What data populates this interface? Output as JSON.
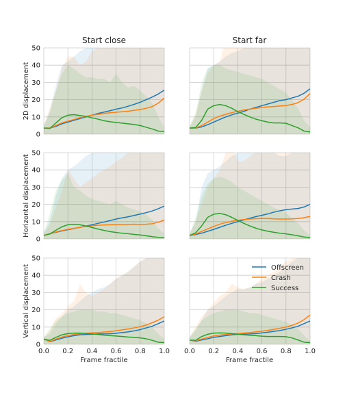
{
  "chart_data": {
    "type": "line",
    "column_titles": [
      "Start close",
      "Start far"
    ],
    "row_labels": [
      "2D displacement",
      "Horizontal displacement",
      "Vertical displacement"
    ],
    "xlabel": "Frame fractile",
    "xlim": [
      0.0,
      1.0
    ],
    "ylim": [
      0,
      50
    ],
    "xticks": [
      "0.0",
      "0.2",
      "0.4",
      "0.6",
      "0.8",
      "1.0"
    ],
    "yticks": [
      "0",
      "10",
      "20",
      "30",
      "40",
      "50"
    ],
    "grid": true,
    "legend": {
      "placement": "upper-right of bottom-right panel",
      "entries": [
        "Offscreen",
        "Crash",
        "Success"
      ]
    },
    "colors": {
      "Offscreen": "#1f77b4",
      "Crash": "#ff7f0e",
      "Success": "#2ca02c"
    },
    "x": [
      0.0,
      0.05,
      0.1,
      0.15,
      0.2,
      0.25,
      0.3,
      0.35,
      0.4,
      0.45,
      0.5,
      0.55,
      0.6,
      0.65,
      0.7,
      0.75,
      0.8,
      0.85,
      0.9,
      0.95,
      1.0
    ],
    "panels": [
      {
        "row": 0,
        "col": 0,
        "series": [
          {
            "name": "Offscreen",
            "values": [
              3.5,
              3.5,
              4.5,
              6,
              7,
              8,
              9,
              10,
              11,
              12,
              12.8,
              13.6,
              14.5,
              15.2,
              16.2,
              17.3,
              18.5,
              20,
              21.5,
              23.3,
              25.5
            ],
            "band_upper": [
              5,
              14,
              28,
              40,
              42,
              45,
              48,
              50,
              55,
              58,
              55,
              58,
              60,
              52,
              55,
              52,
              52,
              50,
              52,
              55,
              50
            ]
          },
          {
            "name": "Crash",
            "values": [
              3.5,
              3.5,
              5,
              6.5,
              7.5,
              8.5,
              9.5,
              10.3,
              11,
              11.5,
              12,
              12.4,
              12.7,
              13,
              13.3,
              13.8,
              14.3,
              15,
              16,
              18,
              21
            ],
            "band_upper": [
              5,
              15,
              25,
              38,
              45,
              45,
              40,
              42,
              48,
              50,
              50,
              52,
              55,
              55,
              55,
              55,
              55,
              55,
              55,
              55,
              55
            ]
          },
          {
            "name": "Success",
            "values": [
              3.5,
              3.3,
              6.5,
              9.5,
              11,
              11.3,
              10.8,
              10.3,
              9.5,
              8.7,
              7.8,
              7.2,
              6.8,
              6.4,
              6,
              5.6,
              5,
              4,
              3,
              1.8,
              1.5
            ],
            "band_upper": [
              5,
              12,
              25,
              35,
              40,
              38,
              35,
              33,
              33,
              32,
              32,
              30,
              35,
              30,
              27,
              28,
              25,
              22,
              18,
              10,
              4
            ]
          }
        ]
      },
      {
        "row": 0,
        "col": 1,
        "series": [
          {
            "name": "Offscreen",
            "values": [
              3.5,
              3.5,
              4.2,
              5.5,
              7,
              8.5,
              10,
              11.2,
              12.2,
              13.2,
              14.5,
              15.5,
              16.5,
              17.5,
              18.5,
              19.5,
              20,
              21,
              22,
              23.7,
              26.3
            ],
            "band_upper": [
              4,
              10,
              25,
              38,
              40,
              42,
              45,
              47,
              48,
              50,
              50,
              50,
              52,
              52,
              52,
              50,
              50,
              50,
              50,
              50,
              50
            ]
          },
          {
            "name": "Crash",
            "values": [
              3.5,
              3.5,
              5,
              7,
              9,
              10.5,
              11.5,
              12.5,
              13.3,
              14,
              14.5,
              15,
              15.5,
              15.8,
              16,
              16.3,
              16.6,
              17.2,
              18.3,
              20.3,
              23.5
            ],
            "band_upper": [
              4,
              12,
              25,
              35,
              40,
              42,
              55,
              55,
              50,
              52,
              55,
              55,
              55,
              55,
              55,
              55,
              55,
              55,
              55,
              55,
              55
            ]
          },
          {
            "name": "Success",
            "values": [
              3.5,
              3.8,
              8,
              14.5,
              16.5,
              17.2,
              16.5,
              15,
              13,
              11.5,
              10,
              8.7,
              7.8,
              7,
              6.5,
              6.5,
              6.3,
              5,
              3.7,
              1.8,
              1.3
            ],
            "band_upper": [
              5,
              12,
              30,
              38,
              40,
              40,
              38,
              37,
              36,
              35,
              34,
              33,
              32,
              30,
              28,
              26,
              24,
              20,
              15,
              8,
              4
            ]
          }
        ]
      },
      {
        "row": 1,
        "col": 0,
        "series": [
          {
            "name": "Offscreen",
            "values": [
              2,
              3,
              3.8,
              4.6,
              5.3,
              6,
              6.7,
              7.4,
              8.2,
              9,
              9.8,
              10.6,
              11.5,
              12.2,
              12.8,
              13.6,
              14.4,
              15.2,
              16.2,
              17.5,
              19
            ],
            "band_upper": [
              4,
              10,
              25,
              35,
              40,
              42,
              45,
              48,
              50,
              50,
              50,
              50,
              52,
              52,
              52,
              50,
              50,
              50,
              50,
              50,
              50
            ]
          },
          {
            "name": "Crash",
            "values": [
              2,
              3,
              4,
              4.8,
              5.5,
              6.1,
              6.7,
              7.2,
              7.6,
              7.9,
              8.1,
              8.2,
              8.3,
              8.3,
              8.4,
              8.5,
              8.4,
              8.5,
              8.8,
              9.6,
              11
            ],
            "band_upper": [
              3,
              8,
              18,
              28,
              40,
              35,
              30,
              33,
              35,
              38,
              40,
              42,
              45,
              47,
              50,
              52,
              55,
              55,
              55,
              55,
              55
            ]
          },
          {
            "name": "Success",
            "values": [
              2,
              2.8,
              5,
              7,
              8.2,
              8.5,
              8.2,
              7.5,
              6.6,
              5.7,
              4.9,
              4.2,
              3.7,
              3.3,
              3,
              2.6,
              2.3,
              1.8,
              1.3,
              0.9,
              0.7
            ],
            "band_upper": [
              3,
              15,
              28,
              34,
              38,
              30,
              28,
              25,
              23,
              22,
              21,
              20,
              22,
              20,
              18,
              17,
              16,
              14,
              11,
              6,
              3
            ]
          }
        ]
      },
      {
        "row": 1,
        "col": 1,
        "series": [
          {
            "name": "Offscreen",
            "values": [
              2,
              2.5,
              3.3,
              4.4,
              5.5,
              6.7,
              7.9,
              9,
              10,
              11,
              12,
              12.9,
              13.7,
              14.5,
              15.5,
              16.3,
              16.9,
              17.3,
              17.6,
              18.5,
              20
            ],
            "band_upper": [
              3,
              10,
              30,
              38,
              40,
              42,
              45,
              48,
              50,
              50,
              50,
              50,
              50,
              50,
              50,
              48,
              48,
              50,
              50,
              50,
              50
            ]
          },
          {
            "name": "Crash",
            "values": [
              2,
              2.8,
              4.3,
              5.8,
              7.2,
              8.5,
              9.5,
              10.2,
              10.8,
              11.2,
              11.5,
              11.7,
              11.8,
              11.8,
              11.6,
              11.5,
              11.5,
              11.6,
              11.8,
              12.3,
              13
            ],
            "band_upper": [
              3,
              10,
              20,
              30,
              35,
              40,
              50,
              55,
              45,
              45,
              48,
              50,
              50,
              52,
              55,
              55,
              55,
              55,
              55,
              55,
              55
            ]
          },
          {
            "name": "Success",
            "values": [
              2,
              3.5,
              7.5,
              12.5,
              14.3,
              14.8,
              14,
              12.5,
              10.7,
              9,
              7.5,
              6.2,
              5.2,
              4.4,
              3.8,
              3.3,
              2.9,
              2.4,
              1.8,
              1.1,
              0.8
            ],
            "band_upper": [
              3,
              12,
              25,
              32,
              35,
              36,
              35,
              33,
              30,
              28,
              26,
              24,
              22,
              20,
              18,
              17,
              15,
              12,
              9,
              5,
              2
            ]
          }
        ]
      },
      {
        "row": 2,
        "col": 0,
        "series": [
          {
            "name": "Offscreen",
            "values": [
              3,
              1.5,
              2.5,
              3.5,
              4.3,
              5,
              5.5,
              5.7,
              5.8,
              6,
              6,
              6.1,
              6.4,
              6.8,
              7.2,
              7.8,
              8.5,
              9.5,
              10.5,
              12,
              13.5
            ],
            "band_upper": [
              4,
              6,
              12,
              16,
              20,
              22,
              25,
              28,
              30,
              32,
              33,
              35,
              38,
              40,
              42,
              45,
              48,
              50,
              50,
              50,
              50
            ]
          },
          {
            "name": "Crash",
            "values": [
              3,
              1.5,
              3,
              4.2,
              5,
              5.7,
              6.1,
              6.4,
              6.6,
              6.8,
              7.1,
              7.4,
              7.9,
              8.4,
              8.9,
              9.5,
              10.2,
              11.2,
              12.5,
              14,
              16
            ],
            "band_upper": [
              4,
              8,
              15,
              18,
              22,
              25,
              35,
              30,
              28,
              30,
              32,
              35,
              38,
              40,
              42,
              45,
              48,
              50,
              52,
              55,
              55
            ]
          },
          {
            "name": "Success",
            "values": [
              3,
              2.3,
              4,
              5.5,
              6.2,
              6.5,
              6.5,
              6.3,
              6,
              5.7,
              5.3,
              5,
              4.8,
              4.5,
              4.2,
              4,
              3.7,
              3.2,
              2.3,
              1.2,
              1
            ],
            "band_upper": [
              4,
              9,
              14,
              16,
              18,
              19,
              20,
              20,
              20,
              19,
              19,
              18,
              18,
              17,
              16,
              15,
              14,
              12,
              10,
              6,
              3
            ]
          }
        ]
      },
      {
        "row": 2,
        "col": 1,
        "series": [
          {
            "name": "Offscreen",
            "values": [
              2.5,
              1.8,
              2.5,
              3.2,
              4,
              4.5,
              5,
              5.5,
              5.8,
              5.9,
              6,
              6.2,
              6.6,
              7,
              7.5,
              8,
              8.7,
              9.5,
              10.5,
              12,
              13.5
            ],
            "band_upper": [
              4,
              8,
              14,
              20,
              22,
              25,
              28,
              30,
              32,
              32,
              33,
              35,
              36,
              38,
              40,
              42,
              45,
              48,
              50,
              50,
              50
            ]
          },
          {
            "name": "Crash",
            "values": [
              2.5,
              2,
              3,
              4,
              4.8,
              5.3,
              5.7,
              6,
              6.2,
              6.5,
              6.8,
              7.2,
              7.6,
              8.1,
              8.7,
              9.3,
              10,
              11,
              12.3,
              14.3,
              17
            ],
            "band_upper": [
              4,
              10,
              16,
              20,
              24,
              28,
              30,
              35,
              33,
              32,
              33,
              35,
              38,
              40,
              42,
              45,
              48,
              50,
              52,
              55,
              55
            ]
          },
          {
            "name": "Success",
            "values": [
              2.5,
              2.3,
              4.5,
              5.8,
              6.5,
              6.6,
              6.5,
              6.2,
              5.8,
              5.5,
              5.2,
              5,
              4.7,
              4.5,
              4.5,
              4.5,
              4.4,
              3.7,
              2.5,
              1.2,
              1
            ],
            "band_upper": [
              4,
              9,
              14,
              16,
              18,
              19,
              20,
              20,
              20,
              19,
              18,
              18,
              17,
              16,
              15,
              14,
              13,
              11,
              9,
              5,
              2
            ]
          }
        ]
      }
    ]
  }
}
